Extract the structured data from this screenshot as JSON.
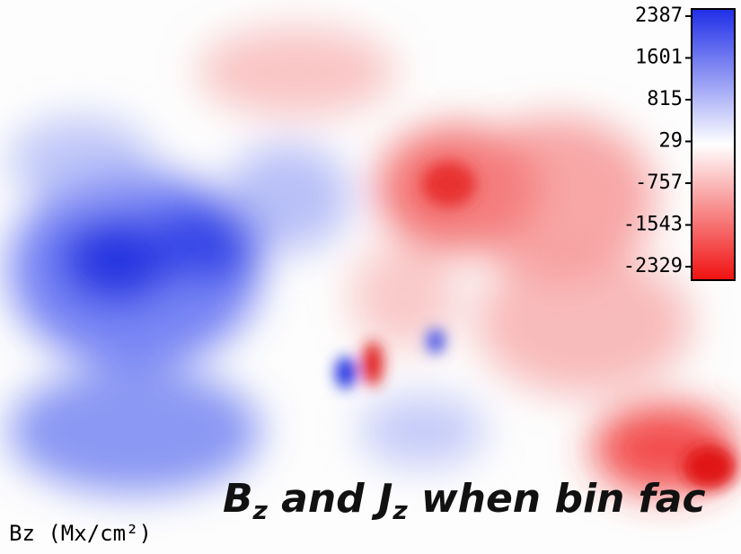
{
  "image": {
    "colorbar": {
      "ticks": [
        2387,
        1601,
        815,
        29,
        -757,
        -1543,
        -2329
      ]
    },
    "axis_label": "Bz (Mx/cm²)",
    "caption": {
      "parts": [
        "B",
        "z",
        " and J",
        "z",
        " when bin fac"
      ]
    }
  }
}
